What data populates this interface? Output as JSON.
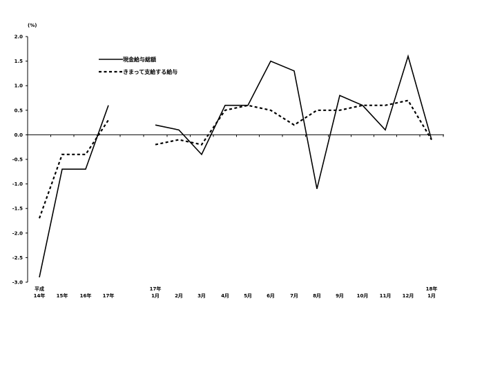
{
  "chart_data": {
    "type": "line",
    "y_unit_label": "(%)",
    "ylim": [
      -3.0,
      2.0
    ],
    "y_ticks": [
      "2.0",
      "1.5",
      "1.0",
      "0.5",
      "0.0",
      "-0.5",
      "-1.0",
      "-1.5",
      "-2.0",
      "-2.5",
      "-3.0"
    ],
    "categories": [
      [
        "平成",
        "14年"
      ],
      [
        "15年"
      ],
      [
        "16年"
      ],
      [
        "17年"
      ],
      [
        "17年",
        "1月"
      ],
      [
        "2月"
      ],
      [
        "3月"
      ],
      [
        "4月"
      ],
      [
        "5月"
      ],
      [
        "6月"
      ],
      [
        "7月"
      ],
      [
        "8月"
      ],
      [
        "9月"
      ],
      [
        "10月"
      ],
      [
        "11月"
      ],
      [
        "12月"
      ],
      [
        "18年",
        "1月"
      ]
    ],
    "x_gap_after_index": 3,
    "legend_position": "top-left",
    "grid": false,
    "series": [
      {
        "name": "現金給与総額",
        "style": "solid",
        "segments": [
          {
            "start": 0,
            "values": [
              -2.9,
              -0.7,
              -0.7,
              0.6
            ]
          },
          {
            "start": 4,
            "values": [
              0.2,
              0.1,
              -0.4,
              0.6,
              0.6,
              1.5,
              1.3,
              -1.1,
              0.8,
              0.6,
              0.1,
              1.6,
              -0.1
            ]
          }
        ]
      },
      {
        "name": "きまって支給する給与",
        "style": "dashed",
        "segments": [
          {
            "start": 0,
            "values": [
              -1.7,
              -0.4,
              -0.4,
              0.3
            ]
          },
          {
            "start": 4,
            "values": [
              -0.2,
              -0.1,
              -0.2,
              0.5,
              0.6,
              0.5,
              0.2,
              0.5,
              0.5,
              0.6,
              0.6,
              0.7,
              -0.1
            ]
          }
        ]
      }
    ],
    "colors": {
      "line": "#000000",
      "axis": "#000000"
    }
  }
}
